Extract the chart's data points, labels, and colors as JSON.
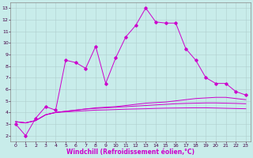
{
  "xlabel": "Windchill (Refroidissement éolien,°C)",
  "background_color": "#c8ecea",
  "grid_color": "#b0cece",
  "line_color": "#cc00cc",
  "x": [
    0,
    1,
    2,
    3,
    4,
    5,
    6,
    7,
    8,
    9,
    10,
    11,
    12,
    13,
    14,
    15,
    16,
    17,
    18,
    19,
    20,
    21,
    22,
    23
  ],
  "zigzag": [
    3.0,
    2.0,
    3.5,
    4.5,
    4.2,
    8.5,
    8.3,
    7.8,
    9.7,
    6.5,
    8.7,
    10.5,
    11.5,
    13.0,
    11.8,
    11.7,
    11.7,
    9.5,
    8.5,
    7.0,
    6.5,
    6.5,
    5.8,
    5.5
  ],
  "smooth1": [
    3.2,
    3.1,
    3.3,
    3.8,
    4.0,
    4.1,
    4.2,
    4.3,
    4.4,
    4.45,
    4.5,
    4.6,
    4.7,
    4.8,
    4.85,
    4.9,
    5.0,
    5.1,
    5.2,
    5.25,
    5.3,
    5.3,
    5.2,
    5.1
  ],
  "smooth2": [
    3.2,
    3.1,
    3.3,
    3.8,
    4.0,
    4.1,
    4.2,
    4.3,
    4.35,
    4.4,
    4.45,
    4.5,
    4.55,
    4.6,
    4.65,
    4.7,
    4.75,
    4.78,
    4.8,
    4.82,
    4.82,
    4.8,
    4.78,
    4.75
  ],
  "smooth3": [
    3.2,
    3.1,
    3.3,
    3.8,
    4.0,
    4.05,
    4.1,
    4.15,
    4.2,
    4.22,
    4.25,
    4.28,
    4.3,
    4.32,
    4.35,
    4.37,
    4.38,
    4.39,
    4.4,
    4.4,
    4.38,
    4.36,
    4.34,
    4.32
  ],
  "ylim": [
    1.5,
    13.5
  ],
  "xlim": [
    -0.5,
    23.5
  ],
  "yticks": [
    2,
    3,
    4,
    5,
    6,
    7,
    8,
    9,
    10,
    11,
    12,
    13
  ],
  "xticks": [
    0,
    1,
    2,
    3,
    4,
    5,
    6,
    7,
    8,
    9,
    10,
    11,
    12,
    13,
    14,
    15,
    16,
    17,
    18,
    19,
    20,
    21,
    22,
    23
  ],
  "tick_fontsize": 4.5,
  "xlabel_fontsize": 5.5,
  "lw": 0.7,
  "marker_size": 1.8
}
